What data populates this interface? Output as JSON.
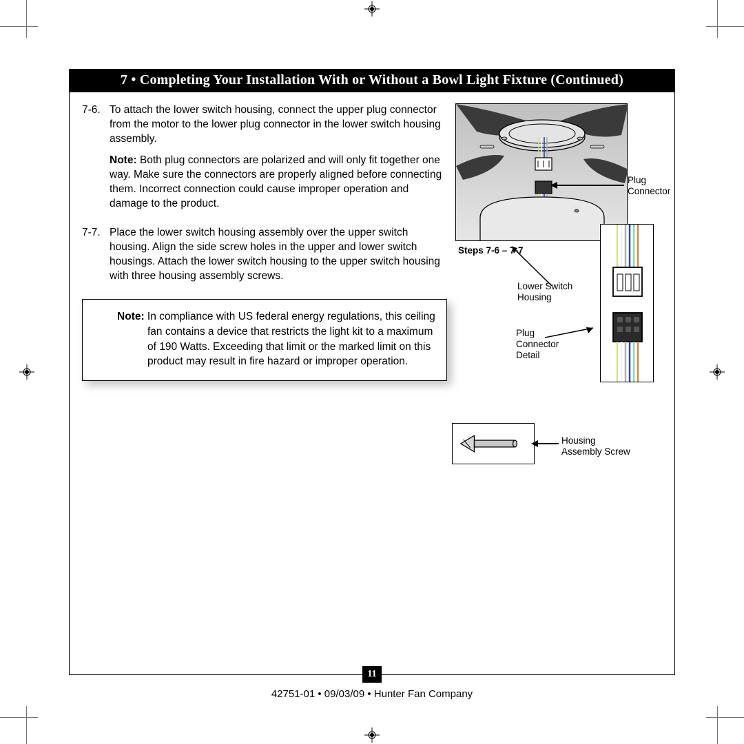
{
  "title": "7 • Completing Your Installation With or Without a Bowl Light Fixture (Continued)",
  "steps": [
    {
      "num": "7-6.",
      "paras": [
        "To attach the lower switch housing, connect the upper plug connector from the motor to the lower plug connector in the lower switch housing assembly.",
        "<strong class='bold'>Note:</strong> Both plug connectors are polarized and will only fit together one way. Make sure the connectors are properly aligned before connecting them. Incorrect connection could cause improper operation and damage to the product."
      ]
    },
    {
      "num": "7-7.",
      "paras": [
        "Place the lower switch housing assembly over the upper switch housing. Align the side screw holes in the upper and lower switch housings. Attach the lower switch housing to the upper switch housing with three housing assembly screws."
      ]
    }
  ],
  "note_box_label": "Note:",
  "note_box_text": " In compliance with US federal energy regulations, this ceiling fan contains a device that restricts the light kit to a maximum of 190 Watts. Exceeding that limit or the marked limit on this product may result in fire hazard or improper operation.",
  "figure": {
    "steps_caption": "Steps 7-6 – 7-7",
    "callouts": {
      "plug_connector": "Plug\nConnector",
      "lower_switch_housing": "Lower Switch\nHousing",
      "plug_connector_detail": "Plug\nConnector\nDetail",
      "housing_assembly_screw": "Housing\nAssembly Screw"
    },
    "colors": {
      "illus_bg_top": "#bfbfbf",
      "illus_bg_bottom": "#e6e6e6",
      "line": "#000000",
      "housing_fill": "#dcdcdc",
      "wire_colors": [
        "#cfe48f",
        "#f0f0f0",
        "#b0b0b0",
        "#2d4aa0",
        "#7fd4c0",
        "#d98a3a"
      ]
    }
  },
  "page_number": "11",
  "footer": "42751-01  •  09/03/09  •  Hunter Fan Company"
}
